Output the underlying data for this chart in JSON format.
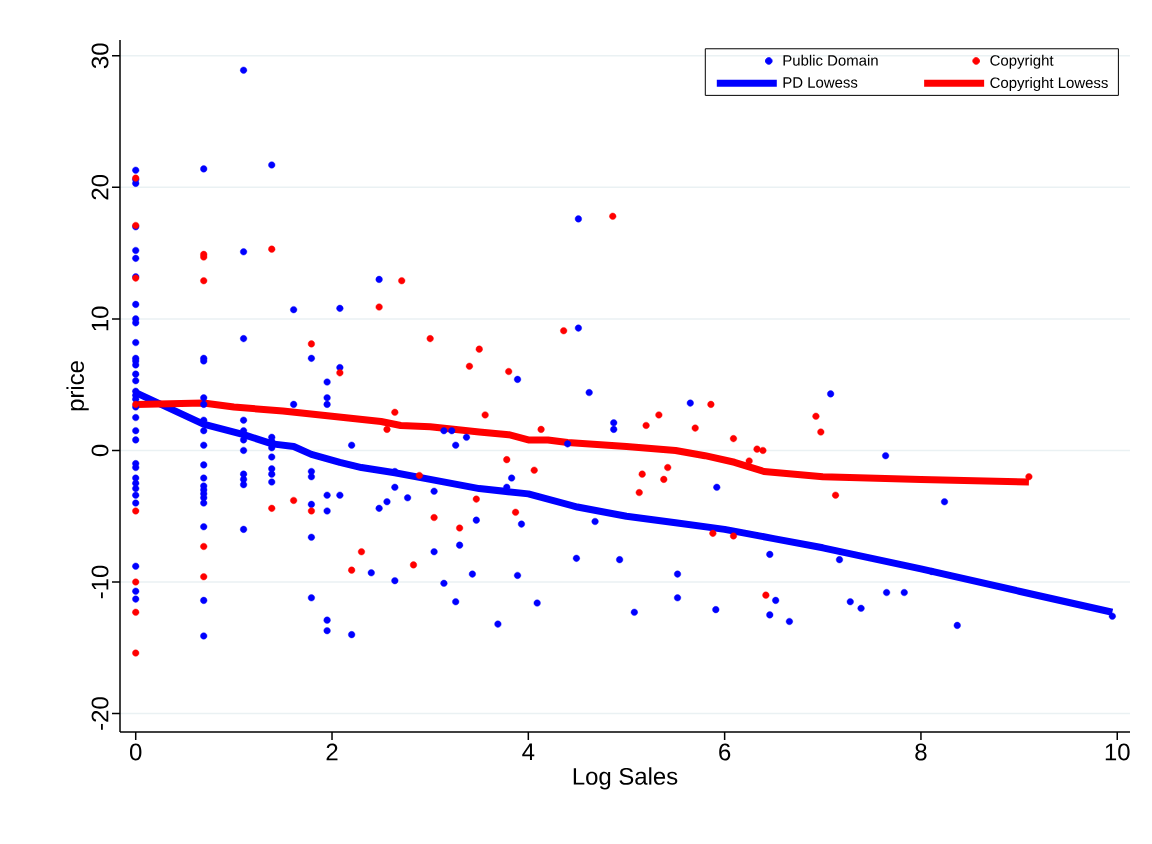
{
  "chart_data": {
    "type": "scatter",
    "xlabel": "Log Sales",
    "ylabel": "price",
    "xlim": [
      -0.16,
      10.13
    ],
    "ylim": [
      -21.4,
      31.2
    ],
    "xticks": [
      0,
      2,
      4,
      6,
      8,
      10
    ],
    "yticks": [
      -20,
      -10,
      0,
      10,
      20,
      30
    ],
    "grid": "y",
    "legend": "top right",
    "series": [
      {
        "name": "Public Domain",
        "marker": "circle",
        "color": "#0000ff",
        "x": [
          0,
          0,
          0,
          0,
          0,
          0,
          0,
          0,
          0,
          0,
          0,
          0,
          0,
          0,
          0,
          0,
          0,
          0,
          0,
          0,
          0,
          0,
          0,
          0,
          0,
          0,
          0,
          0,
          0,
          0,
          0,
          0,
          0,
          0.693,
          0.693,
          0.693,
          0.693,
          0.693,
          0.693,
          0.693,
          0.693,
          0.693,
          0.693,
          0.693,
          0.693,
          0.693,
          0.693,
          0.693,
          0.693,
          0.693,
          0.693,
          1.099,
          1.099,
          1.099,
          1.099,
          1.099,
          1.099,
          1.099,
          1.099,
          1.099,
          1.099,
          1.099,
          1.386,
          1.386,
          1.386,
          1.386,
          1.386,
          1.386,
          1.386,
          1.386,
          1.609,
          1.609,
          1.79,
          1.79,
          1.79,
          1.79,
          1.79,
          1.79,
          1.95,
          1.95,
          1.95,
          1.95,
          1.95,
          1.95,
          1.95,
          2.08,
          2.08,
          2.08,
          2.2,
          2.2,
          2.4,
          2.48,
          2.48,
          2.56,
          2.64,
          2.64,
          2.64,
          2.77,
          3.04,
          3.04,
          3.14,
          3.14,
          3.22,
          3.26,
          3.26,
          3.3,
          3.37,
          3.43,
          3.47,
          3.69,
          3.78,
          3.83,
          3.89,
          3.89,
          3.93,
          4.09,
          4.4,
          4.49,
          4.51,
          4.51,
          4.62,
          4.68,
          4.87,
          4.87,
          4.93,
          5.08,
          5.52,
          5.52,
          5.65,
          5.91,
          5.92,
          6.46,
          6.46,
          6.52,
          6.66,
          7.08,
          7.17,
          7.28,
          7.39,
          7.64,
          7.65,
          7.83,
          8.11,
          8.24,
          8.37,
          9.95
        ],
        "values": [
          21.3,
          20.6,
          20.3,
          17.0,
          15.2,
          14.6,
          13.2,
          11.1,
          10.0,
          9.7,
          8.2,
          7.0,
          6.8,
          6.5,
          5.8,
          5.3,
          4.5,
          4.2,
          3.9,
          3.3,
          2.5,
          1.5,
          0.8,
          -1.0,
          -1.3,
          -2.1,
          -2.5,
          -2.9,
          -3.4,
          -4.0,
          -8.8,
          -10.7,
          -11.3,
          21.4,
          7.0,
          6.8,
          4.0,
          3.5,
          2.3,
          1.5,
          0.4,
          -1.1,
          -2.1,
          -2.7,
          -3.0,
          -3.3,
          -3.6,
          -4.0,
          -5.8,
          -11.4,
          -14.1,
          28.9,
          15.1,
          8.5,
          2.3,
          1.5,
          0.8,
          0.0,
          -1.8,
          -2.2,
          -2.6,
          -6.0,
          21.7,
          1.0,
          0.7,
          0.2,
          -0.5,
          -1.4,
          -1.8,
          -2.4,
          10.7,
          3.5,
          7.0,
          -1.6,
          -2.0,
          -4.1,
          -6.6,
          -11.2,
          5.2,
          4.0,
          3.5,
          -3.4,
          -4.6,
          -12.9,
          -13.7,
          10.8,
          6.3,
          -3.4,
          0.4,
          -14.0,
          -9.3,
          13.0,
          -4.4,
          -3.9,
          -1.6,
          -2.8,
          -9.9,
          -3.6,
          -3.1,
          -7.7,
          1.5,
          -10.1,
          1.5,
          0.4,
          -11.5,
          -7.2,
          1.0,
          -9.4,
          -5.3,
          -13.2,
          -2.8,
          -2.1,
          5.4,
          -9.5,
          -5.6,
          -11.6,
          0.5,
          -8.2,
          17.6,
          9.3,
          4.4,
          -5.4,
          2.1,
          1.6,
          -8.3,
          -12.3,
          -9.4,
          -11.2,
          3.6,
          -12.1,
          -2.8,
          -7.9,
          -12.5,
          -11.4,
          -13.0,
          4.3,
          -8.3,
          -11.5,
          -12.0,
          -0.4,
          -10.8,
          -10.8,
          -9.2,
          -3.9,
          -13.3,
          -12.6
        ]
      },
      {
        "name": "Copyright",
        "marker": "circle",
        "color": "#ff0000",
        "x": [
          0,
          0,
          0,
          0,
          0,
          0,
          0,
          0,
          0.693,
          0.693,
          0.693,
          0.693,
          0.693,
          1.386,
          1.386,
          1.609,
          1.79,
          1.79,
          2.08,
          2.2,
          2.3,
          2.48,
          2.56,
          2.64,
          2.71,
          2.83,
          2.89,
          3.0,
          3.04,
          3.3,
          3.4,
          3.47,
          3.5,
          3.56,
          3.78,
          3.8,
          3.87,
          4.06,
          4.13,
          4.36,
          4.86,
          5.13,
          5.16,
          5.2,
          5.33,
          5.38,
          5.42,
          5.7,
          5.86,
          5.88,
          6.09,
          6.09,
          6.25,
          6.33,
          6.39,
          6.42,
          6.93,
          6.98,
          7.13,
          9.1
        ],
        "values": [
          20.7,
          17.1,
          13.1,
          3.5,
          -4.6,
          -10.0,
          -12.3,
          -15.4,
          14.9,
          14.7,
          12.9,
          -7.3,
          -9.6,
          15.3,
          -4.4,
          -3.8,
          8.1,
          -4.6,
          5.9,
          -9.1,
          -7.7,
          10.9,
          1.6,
          2.9,
          12.9,
          -8.7,
          -1.9,
          8.5,
          -5.1,
          -5.9,
          6.4,
          -3.7,
          7.7,
          2.7,
          -0.7,
          6.0,
          -4.7,
          -1.5,
          1.6,
          9.1,
          17.8,
          -3.2,
          -1.8,
          1.9,
          2.7,
          -2.2,
          -1.3,
          1.7,
          3.5,
          -6.3,
          0.9,
          -6.5,
          -0.8,
          0.1,
          0.0,
          -11.0,
          2.6,
          1.4,
          -3.4,
          -2.0
        ]
      },
      {
        "name": "PD Lowess",
        "type": "line",
        "marker": "none",
        "color": "#0000ff",
        "x": [
          0,
          0.69,
          1.1,
          1.39,
          1.61,
          1.79,
          2.08,
          2.3,
          2.64,
          3.0,
          3.5,
          4.0,
          4.5,
          5.0,
          5.5,
          6.0,
          6.5,
          7.0,
          7.5,
          8.0,
          9.0,
          9.95
        ],
        "values": [
          4.4,
          2.0,
          1.2,
          0.5,
          0.3,
          -0.3,
          -0.9,
          -1.3,
          -1.7,
          -2.2,
          -2.9,
          -3.3,
          -4.3,
          -5.0,
          -5.5,
          -6.0,
          -6.7,
          -7.4,
          -8.2,
          -9.0,
          -10.7,
          -12.3
        ]
      },
      {
        "name": "Copyright Lowess",
        "type": "line",
        "marker": "none",
        "color": "#ff0000",
        "x": [
          0,
          0.69,
          1.0,
          1.5,
          2.0,
          2.5,
          2.7,
          3.0,
          3.5,
          3.8,
          4.0,
          4.2,
          4.4,
          5.0,
          5.5,
          5.8,
          6.1,
          6.4,
          7.0,
          8.0,
          9.1
        ],
        "values": [
          3.5,
          3.6,
          3.3,
          3.0,
          2.6,
          2.2,
          1.9,
          1.8,
          1.4,
          1.2,
          0.8,
          0.8,
          0.6,
          0.3,
          0.0,
          -0.4,
          -0.9,
          -1.6,
          -2.0,
          -2.2,
          -2.4
        ]
      }
    ]
  }
}
